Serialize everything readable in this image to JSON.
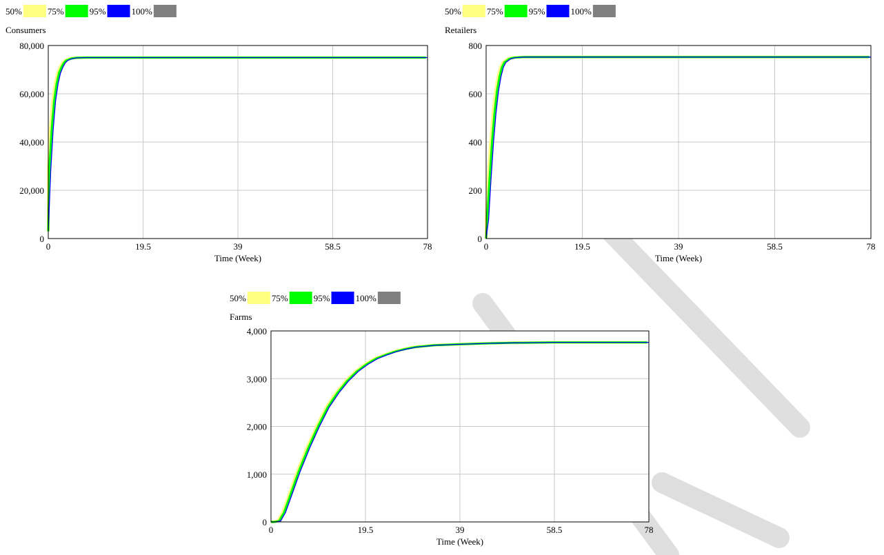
{
  "chart_data": [
    {
      "type": "area",
      "title": "Consumers",
      "xlabel": "Time (Week)",
      "ylabel": "",
      "xlim": [
        0,
        78
      ],
      "ylim": [
        0,
        80000
      ],
      "x_ticks": [
        "0",
        "19.5",
        "39",
        "58.5",
        "78"
      ],
      "y_ticks": [
        "0",
        "20,000",
        "40,000",
        "60,000",
        "80,000"
      ],
      "legend": {
        "placement": "top-left",
        "labels": [
          "50%",
          "75%",
          "95%",
          "100%"
        ],
        "colors": [
          "#ffff80",
          "#00ff00",
          "#0000ff",
          "#808080"
        ]
      },
      "series": [
        {
          "values": [
            [
              0,
              3000
            ],
            [
              0.5,
              28000
            ],
            [
              1,
              45000
            ],
            [
              1.5,
              57000
            ],
            [
              2,
              64000
            ],
            [
              2.5,
              68500
            ],
            [
              3,
              71000
            ],
            [
              3.5,
              72800
            ],
            [
              4,
              73800
            ],
            [
              5,
              74600
            ],
            [
              6,
              74900
            ],
            [
              8,
              75000
            ],
            [
              10,
              75000
            ],
            [
              20,
              75000
            ],
            [
              40,
              75000
            ],
            [
              60,
              75000
            ],
            [
              78,
              75000
            ]
          ],
          "color": "#0000ff"
        }
      ],
      "grid": true
    },
    {
      "type": "area",
      "title": "Retailers",
      "xlabel": "Time (Week)",
      "ylabel": "",
      "xlim": [
        0,
        78
      ],
      "ylim": [
        0,
        800
      ],
      "x_ticks": [
        "0",
        "19.5",
        "39",
        "58.5",
        "78"
      ],
      "y_ticks": [
        "0",
        "200",
        "400",
        "600",
        "800"
      ],
      "legend": {
        "placement": "top-left",
        "labels": [
          "50%",
          "75%",
          "95%",
          "100%"
        ],
        "colors": [
          "#ffff80",
          "#00ff00",
          "#0000ff",
          "#808080"
        ]
      },
      "series": [
        {
          "values": [
            [
              0,
              0
            ],
            [
              0.5,
              80
            ],
            [
              1,
              250
            ],
            [
              1.5,
              400
            ],
            [
              2,
              520
            ],
            [
              2.5,
              610
            ],
            [
              3,
              670
            ],
            [
              3.5,
              710
            ],
            [
              4,
              730
            ],
            [
              5,
              745
            ],
            [
              6,
              750
            ],
            [
              8,
              752
            ],
            [
              10,
              752
            ],
            [
              20,
              752
            ],
            [
              40,
              752
            ],
            [
              60,
              752
            ],
            [
              78,
              752
            ]
          ],
          "color": "#0000ff"
        }
      ],
      "grid": true
    },
    {
      "type": "area",
      "title": "Farms",
      "xlabel": "Time (Week)",
      "ylabel": "",
      "xlim": [
        0,
        78
      ],
      "ylim": [
        0,
        4000
      ],
      "x_ticks": [
        "0",
        "19.5",
        "39",
        "58.5",
        "78"
      ],
      "y_ticks": [
        "0",
        "1,000",
        "2,000",
        "3,000",
        "4,000"
      ],
      "legend": {
        "placement": "top-left",
        "labels": [
          "50%",
          "75%",
          "95%",
          "100%"
        ],
        "colors": [
          "#ffff80",
          "#00ff00",
          "#0000ff",
          "#808080"
        ]
      },
      "series": [
        {
          "values": [
            [
              0,
              0
            ],
            [
              1,
              0
            ],
            [
              2,
              20
            ],
            [
              3,
              200
            ],
            [
              4,
              480
            ],
            [
              6,
              1050
            ],
            [
              8,
              1550
            ],
            [
              10,
              2000
            ],
            [
              12,
              2400
            ],
            [
              14,
              2700
            ],
            [
              16,
              2950
            ],
            [
              18,
              3150
            ],
            [
              20,
              3300
            ],
            [
              22,
              3420
            ],
            [
              24,
              3500
            ],
            [
              26,
              3570
            ],
            [
              28,
              3620
            ],
            [
              30,
              3660
            ],
            [
              34,
              3700
            ],
            [
              39,
              3720
            ],
            [
              45,
              3740
            ],
            [
              50,
              3750
            ],
            [
              58.5,
              3760
            ],
            [
              65,
              3760
            ],
            [
              78,
              3760
            ]
          ],
          "color": "#0000ff"
        }
      ],
      "grid": true
    }
  ]
}
